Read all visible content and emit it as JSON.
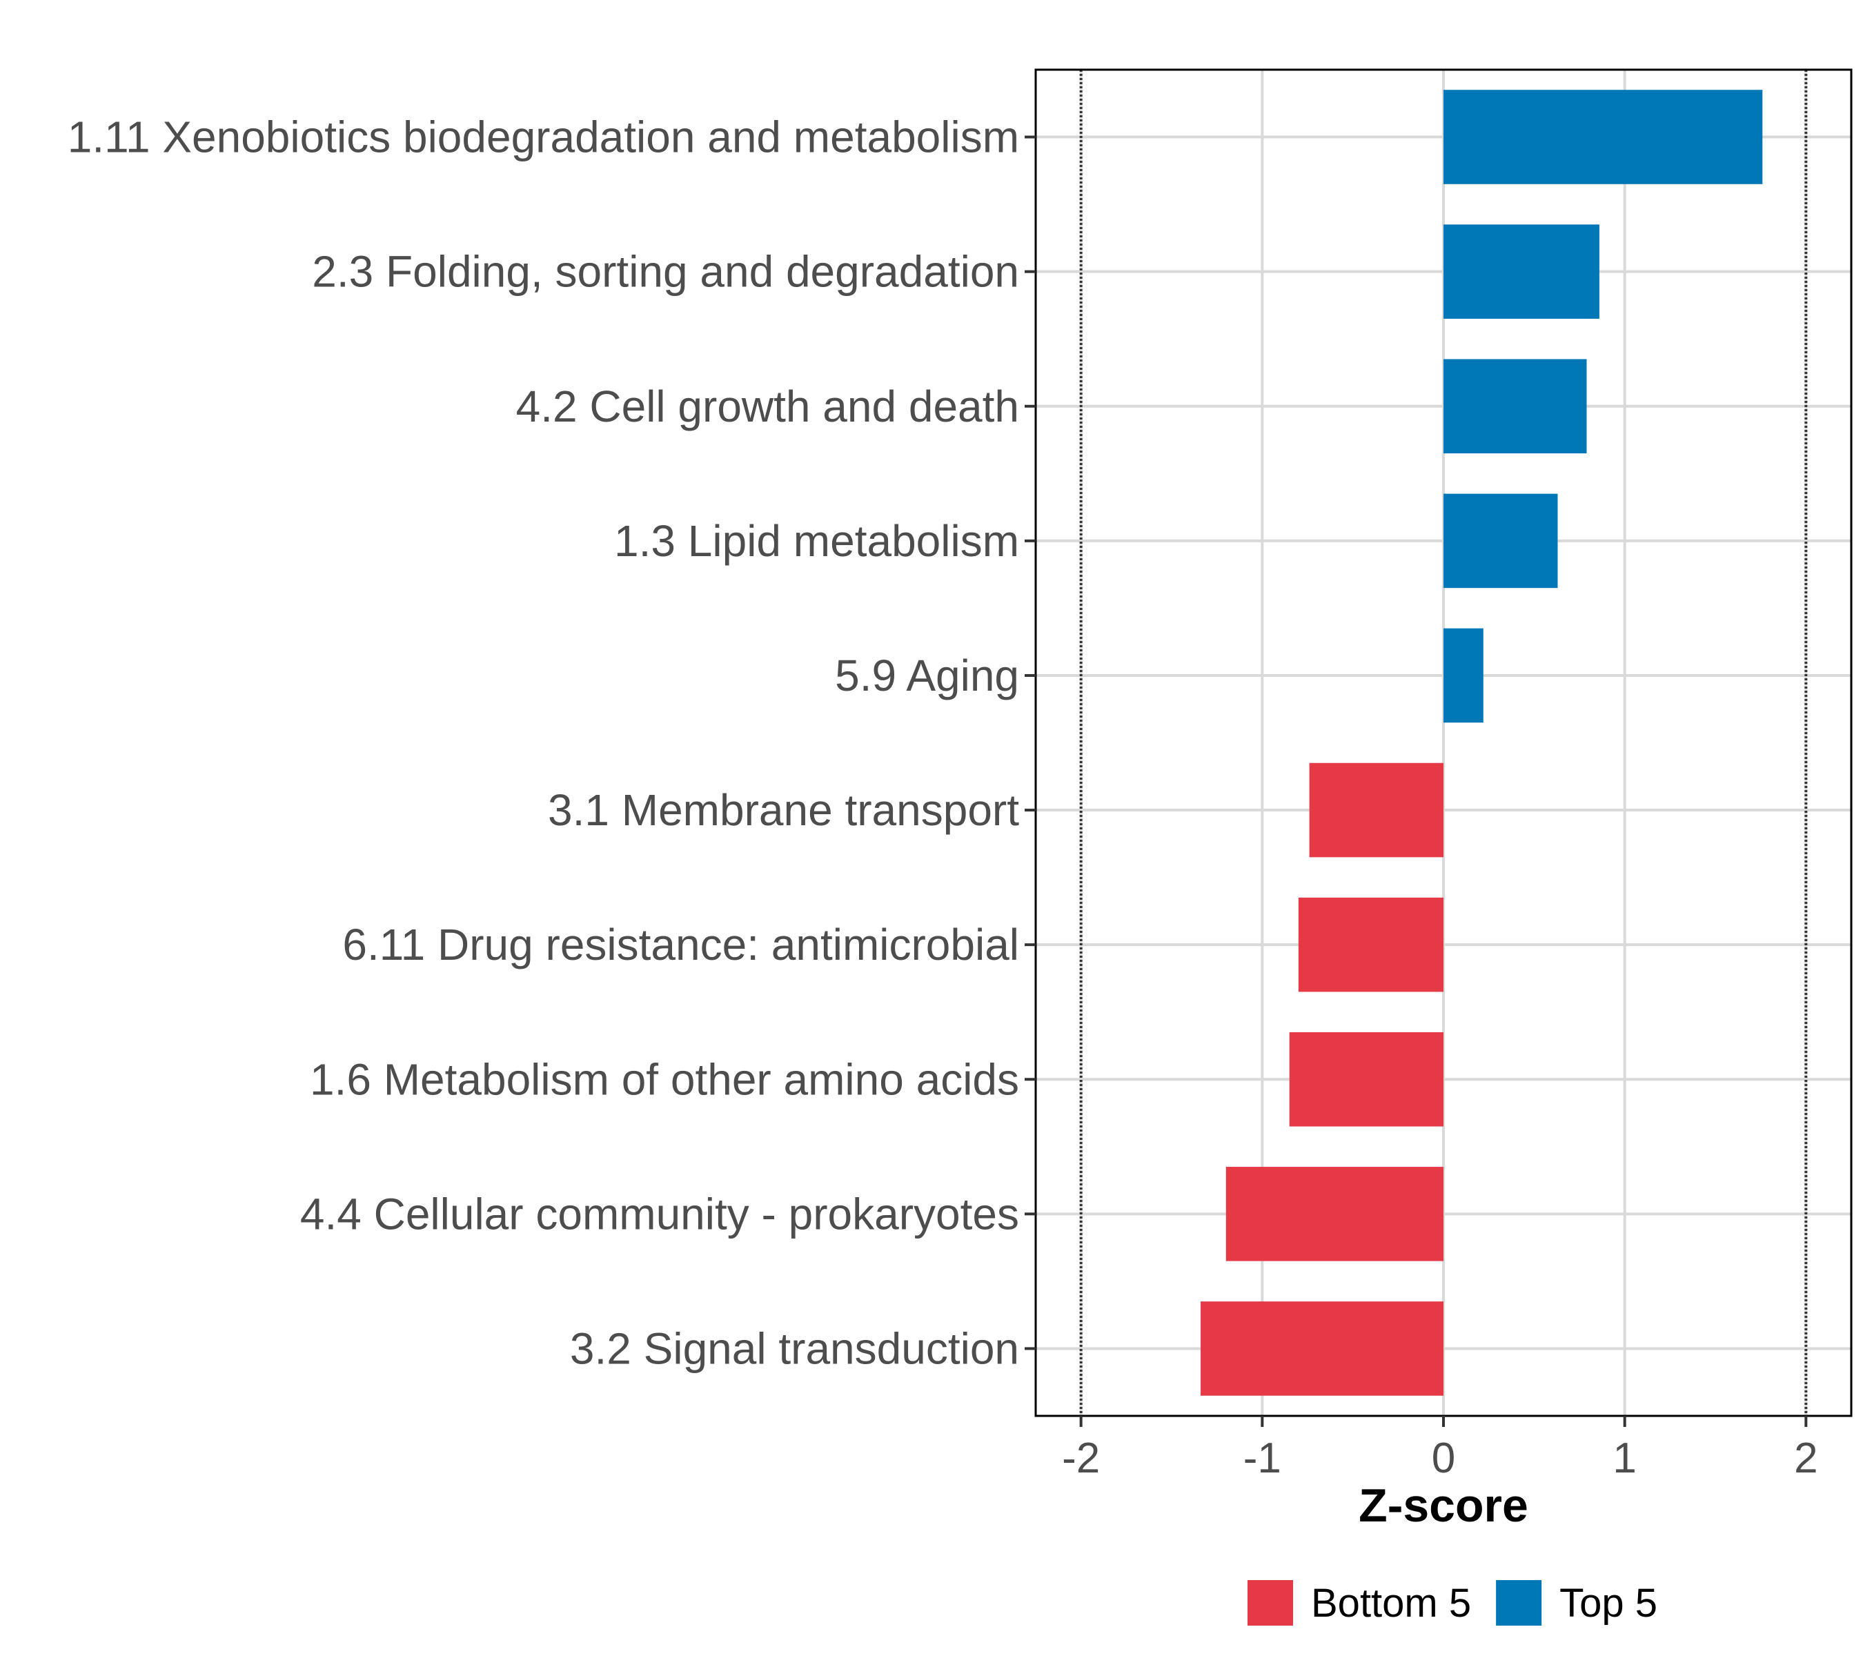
{
  "chart_data": {
    "type": "bar",
    "orientation": "horizontal",
    "categories": [
      "1.11 Xenobiotics biodegradation and metabolism",
      "2.3 Folding, sorting and degradation",
      "4.2 Cell growth and death",
      "1.3 Lipid metabolism",
      "5.9 Aging",
      "3.1 Membrane transport",
      "6.11 Drug resistance: antimicrobial",
      "1.6 Metabolism of other amino acids",
      "4.4 Cellular community - prokaryotes",
      "3.2 Signal transduction"
    ],
    "values": [
      1.76,
      0.86,
      0.79,
      0.63,
      0.22,
      -0.74,
      -0.8,
      -0.85,
      -1.2,
      -1.34
    ],
    "groups": [
      "Top 5",
      "Top 5",
      "Top 5",
      "Top 5",
      "Top 5",
      "Bottom 5",
      "Bottom 5",
      "Bottom 5",
      "Bottom 5",
      "Bottom 5"
    ],
    "xlabel": "Z-score",
    "ylabel": "",
    "xlim": [
      -2.25,
      2.25
    ],
    "xticks": [
      -2,
      -1,
      0,
      1,
      2
    ],
    "xtick_labels": [
      "-2",
      "-1",
      "0",
      "1",
      "2"
    ],
    "reference_lines": [
      -2,
      2
    ],
    "grid": true,
    "legend": {
      "position": "bottom",
      "entries": [
        {
          "label": "Bottom 5",
          "color": "#e63946"
        },
        {
          "label": "Top 5",
          "color": "#0077b6"
        }
      ]
    }
  }
}
